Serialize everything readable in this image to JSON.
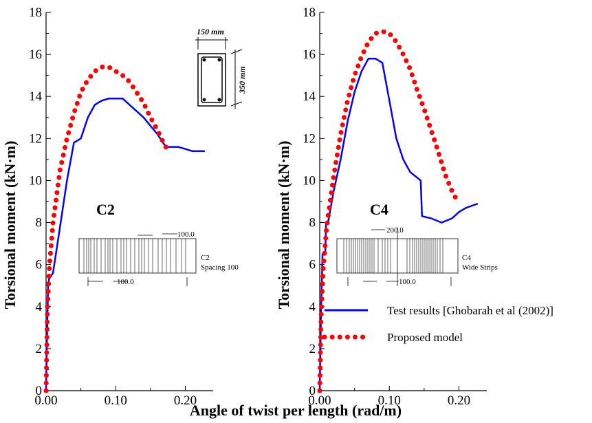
{
  "colors": {
    "test": "#0000ff",
    "model": "#ff0000",
    "axis": "#000000"
  },
  "chart_data": [
    {
      "type": "line",
      "panel_label": "C2",
      "xlabel": "Angle of twist per length  (rad/m)",
      "ylabel": "Torsional moment  (kN·m)",
      "xlim": [
        0,
        0.24
      ],
      "ylim": [
        0,
        18
      ],
      "xticks": [
        "0.00",
        "0.10",
        "0.20"
      ],
      "xtick_values": [
        0,
        0.1,
        0.2
      ],
      "yticks": [
        "0",
        "2",
        "4",
        "6",
        "8",
        "10",
        "12",
        "14",
        "16",
        "18"
      ],
      "ytick_values": [
        0,
        2,
        4,
        6,
        8,
        10,
        12,
        14,
        16,
        18
      ],
      "series": [
        {
          "name": "Test results [Ghobarah et al (2002)]",
          "style": "solid",
          "x": [
            0,
            0.001,
            0.003,
            0.005,
            0.006,
            0.01,
            0.02,
            0.03,
            0.04,
            0.05,
            0.06,
            0.07,
            0.08,
            0.09,
            0.1,
            0.11,
            0.12,
            0.13,
            0.14,
            0.15,
            0.16,
            0.17,
            0.175,
            0.19,
            0.2,
            0.21,
            0.22,
            0.228
          ],
          "y": [
            0,
            2.0,
            5.0,
            5.5,
            5.4,
            5.6,
            7.8,
            10.0,
            11.8,
            12.0,
            13.0,
            13.6,
            13.8,
            13.9,
            13.9,
            13.9,
            13.6,
            13.3,
            13.0,
            12.6,
            12.2,
            11.7,
            11.6,
            11.6,
            11.5,
            11.4,
            11.4,
            11.4
          ]
        },
        {
          "name": "Proposed model",
          "style": "dotted",
          "x": [
            0,
            0.002,
            0.005,
            0.01,
            0.02,
            0.03,
            0.04,
            0.05,
            0.06,
            0.07,
            0.08,
            0.09,
            0.1,
            0.11,
            0.12,
            0.13,
            0.14,
            0.15,
            0.16,
            0.17,
            0.178
          ],
          "y": [
            0,
            4.0,
            6.0,
            8.0,
            10.5,
            12.0,
            13.2,
            14.2,
            14.8,
            15.2,
            15.4,
            15.4,
            15.2,
            15.0,
            14.7,
            14.2,
            13.7,
            13.0,
            12.4,
            11.7,
            11.3
          ]
        }
      ],
      "inset_section": {
        "width_label": "150 mm",
        "height_label": "350 mm"
      },
      "inset_elevation": {
        "dim_top": "100.0",
        "dim_bottom": "100.0",
        "caption_line1": "C2",
        "caption_line2": "Spacing 100"
      }
    },
    {
      "type": "line",
      "panel_label": "C4",
      "xlabel": "Angle of twist per length  (rad/m)",
      "ylabel": "Torsional moment  (kN·m)",
      "xlim": [
        0,
        0.24
      ],
      "ylim": [
        0,
        18
      ],
      "xticks": [
        "0.00",
        "0.10",
        "0.20"
      ],
      "xtick_values": [
        0,
        0.1,
        0.2
      ],
      "yticks": [
        "0",
        "2",
        "4",
        "6",
        "8",
        "10",
        "12",
        "14",
        "16",
        "18"
      ],
      "ytick_values": [
        0,
        2,
        4,
        6,
        8,
        10,
        12,
        14,
        16,
        18
      ],
      "series": [
        {
          "name": "Test results [Ghobarah et al (2002)]",
          "style": "solid",
          "x": [
            0,
            0.002,
            0.004,
            0.005,
            0.008,
            0.009,
            0.012,
            0.013,
            0.02,
            0.03,
            0.04,
            0.05,
            0.06,
            0.07,
            0.08,
            0.09,
            0.1,
            0.11,
            0.12,
            0.13,
            0.145,
            0.147,
            0.16,
            0.175,
            0.19,
            0.2,
            0.21,
            0.227
          ],
          "y": [
            0,
            4.0,
            6.5,
            6.5,
            6.5,
            8.0,
            8.0,
            8.2,
            9.5,
            11.0,
            12.8,
            14.2,
            15.2,
            15.8,
            15.8,
            15.6,
            13.8,
            12.0,
            11.0,
            10.4,
            10.0,
            8.3,
            8.2,
            8.0,
            8.2,
            8.5,
            8.7,
            8.9
          ]
        },
        {
          "name": "Proposed model",
          "style": "dotted",
          "x": [
            0,
            0.002,
            0.005,
            0.01,
            0.02,
            0.03,
            0.04,
            0.05,
            0.06,
            0.07,
            0.08,
            0.09,
            0.1,
            0.11,
            0.12,
            0.13,
            0.14,
            0.15,
            0.16,
            0.17,
            0.18,
            0.19,
            0.198
          ],
          "y": [
            0,
            3.5,
            5.8,
            7.8,
            10.2,
            12.2,
            13.8,
            15.0,
            15.9,
            16.6,
            17.0,
            17.1,
            17.0,
            16.6,
            16.0,
            15.3,
            14.3,
            13.4,
            12.4,
            11.4,
            10.3,
            9.5,
            9.0
          ]
        }
      ],
      "inset_elevation": {
        "dim_top": "200.0",
        "dim_bottom": "100.0",
        "caption_line1": "C4",
        "caption_line2": "Wide Strips"
      },
      "legend": {
        "placement": "bottom-right",
        "entries": [
          "Test results [Ghobarah et al (2002)]",
          "Proposed model"
        ]
      }
    }
  ]
}
